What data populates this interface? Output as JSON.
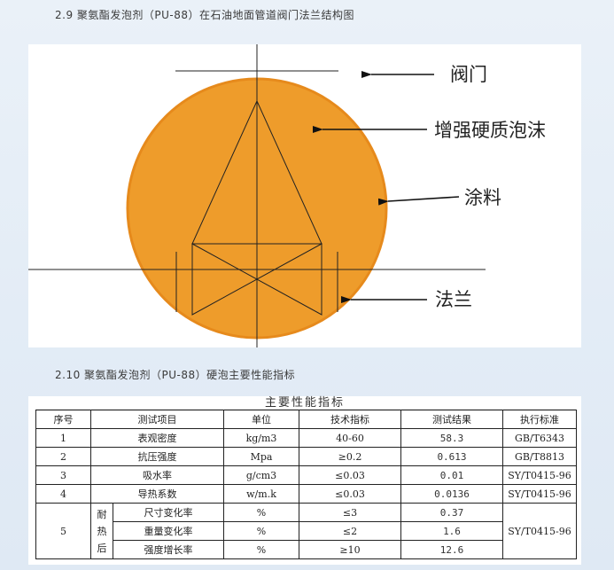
{
  "figure_heading": "2.9 聚氨酯发泡剂（PU-88）在石油地面管道阀门法兰结构图",
  "diagram": {
    "labels": {
      "valve": "阀门",
      "foam": "增强硬质泡沫",
      "coating": "涂料",
      "flange": "法兰"
    },
    "colors": {
      "foam_fill": "#ee9c2b",
      "coating_stroke": "#e68a1c",
      "line": "#222222"
    }
  },
  "table_heading": "2.10 聚氨酯发泡剂（PU-88）硬泡主要性能指标",
  "table": {
    "caption": "主要性能指标",
    "columns": [
      "序号",
      "测试项目",
      "单位",
      "技术指标",
      "测试结果",
      "执行标准"
    ],
    "rows": [
      {
        "no": "1",
        "item": "表观密度",
        "unit": "kg/m3",
        "spec": "40-60",
        "result": "58.3",
        "standard": "GB/T6343"
      },
      {
        "no": "2",
        "item": "抗压强度",
        "unit": "Mpa",
        "spec": "≥0.2",
        "result": "0.613",
        "standard": "GB/T8813"
      },
      {
        "no": "3",
        "item": "吸水率",
        "unit": "g/cm3",
        "spec": "≤0.03",
        "result": "0.01",
        "standard": "SY/T0415-96"
      },
      {
        "no": "4",
        "item": "导热系数",
        "unit": "w/m.k",
        "spec": "≤0.03",
        "result": "0.0136",
        "standard": "SY/T0415-96"
      }
    ],
    "group": {
      "no": "5",
      "category_chars": [
        "耐",
        "热",
        "后"
      ],
      "standard": "SY/T0415-96",
      "rows": [
        {
          "item": "尺寸变化率",
          "unit": "%",
          "spec": "≤3",
          "result": "0.37"
        },
        {
          "item": "重量变化率",
          "unit": "%",
          "spec": "≤2",
          "result": "1.6"
        },
        {
          "item": "强度增长率",
          "unit": "%",
          "spec": "≥10",
          "result": "12.6"
        }
      ]
    }
  }
}
